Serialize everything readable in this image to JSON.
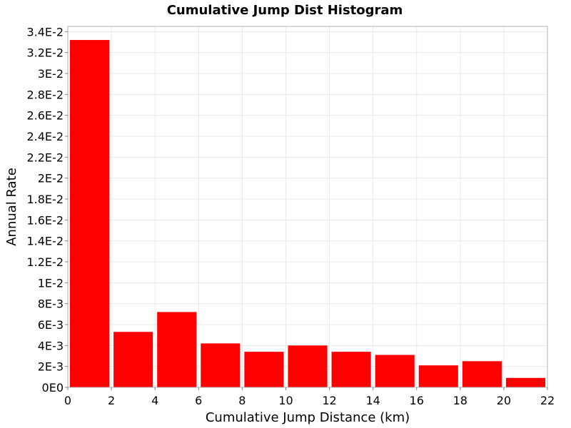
{
  "chart_data": {
    "type": "bar",
    "title": "Cumulative Jump Dist Histogram",
    "xlabel": "Cumulative Jump Distance (km)",
    "ylabel": "Annual Rate",
    "xlim": [
      0,
      22
    ],
    "ylim": [
      0,
      0.0345
    ],
    "x_ticks": [
      0,
      2,
      4,
      6,
      8,
      10,
      12,
      14,
      16,
      18,
      20,
      22
    ],
    "x_tick_labels": [
      "0",
      "2",
      "4",
      "6",
      "8",
      "10",
      "12",
      "14",
      "16",
      "18",
      "20",
      "22"
    ],
    "y_ticks": [
      0,
      0.002,
      0.004,
      0.006,
      0.008,
      0.01,
      0.012,
      0.014,
      0.016,
      0.018,
      0.02,
      0.022,
      0.024,
      0.026,
      0.028,
      0.03,
      0.032,
      0.034
    ],
    "y_tick_labels": [
      "0E0",
      "2E-3",
      "4E-3",
      "6E-3",
      "8E-3",
      "1E-2",
      "1.2E-2",
      "1.4E-2",
      "1.6E-2",
      "1.8E-2",
      "2E-2",
      "2.2E-2",
      "2.4E-2",
      "2.6E-2",
      "2.8E-2",
      "3E-2",
      "3.2E-2",
      "3.4E-2"
    ],
    "bins": [
      {
        "x0": 0,
        "x1": 2,
        "value": 0.0332
      },
      {
        "x0": 2,
        "x1": 4,
        "value": 0.0053
      },
      {
        "x0": 4,
        "x1": 6,
        "value": 0.0072
      },
      {
        "x0": 6,
        "x1": 8,
        "value": 0.0042
      },
      {
        "x0": 8,
        "x1": 10,
        "value": 0.0034
      },
      {
        "x0": 10,
        "x1": 12,
        "value": 0.004
      },
      {
        "x0": 12,
        "x1": 14,
        "value": 0.0034
      },
      {
        "x0": 14,
        "x1": 16,
        "value": 0.0031
      },
      {
        "x0": 16,
        "x1": 18,
        "value": 0.0021
      },
      {
        "x0": 18,
        "x1": 20,
        "value": 0.0025
      },
      {
        "x0": 20,
        "x1": 22,
        "value": 0.0009
      }
    ],
    "grid": true,
    "colors": {
      "bar": "#ff0000",
      "grid": "#e8e8e8",
      "frame": "#b0b0b0"
    }
  }
}
